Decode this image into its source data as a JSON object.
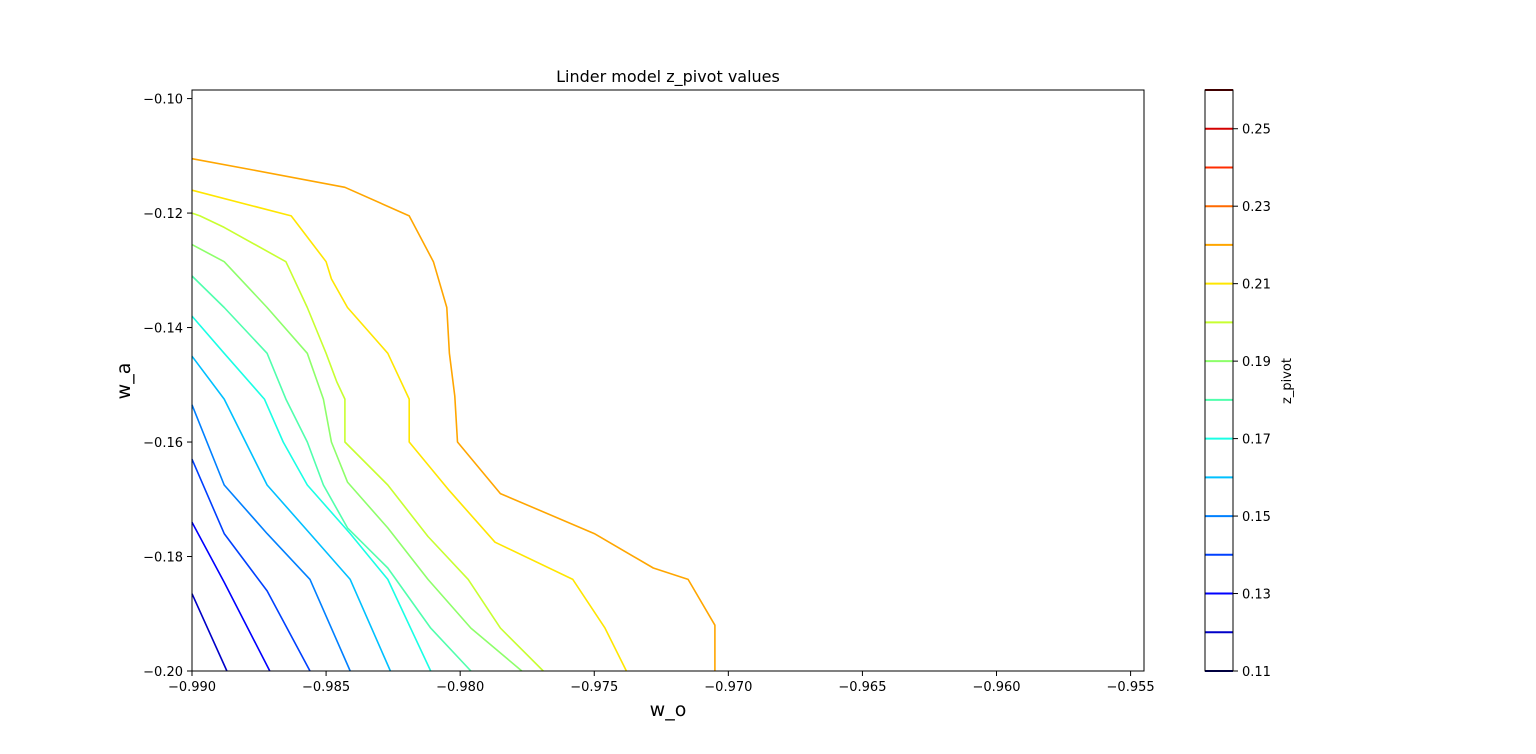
{
  "chart_data": {
    "type": "contour",
    "title": "Linder model z_pivot values",
    "xlabel": "w_o",
    "ylabel": "w_a",
    "xlim": [
      -0.99,
      -0.9545
    ],
    "ylim": [
      -0.2,
      -0.0985
    ],
    "xticks": [
      -0.99,
      -0.985,
      -0.98,
      -0.975,
      -0.97,
      -0.965,
      -0.96,
      -0.955
    ],
    "xtick_labels": [
      "−0.990",
      "−0.985",
      "−0.980",
      "−0.975",
      "−0.970",
      "−0.965",
      "−0.960",
      "−0.955"
    ],
    "yticks": [
      -0.2,
      -0.18,
      -0.16,
      -0.14,
      -0.12,
      -0.1
    ],
    "ytick_labels": [
      "−0.20",
      "−0.18",
      "−0.16",
      "−0.14",
      "−0.12",
      "−0.10"
    ],
    "grid": false,
    "colorbar": {
      "label": "z_pivot",
      "range": [
        0.11,
        0.26
      ],
      "levels": [
        0.11,
        0.12,
        0.13,
        0.14,
        0.15,
        0.16,
        0.17,
        0.18,
        0.19,
        0.2,
        0.21,
        0.22,
        0.23,
        0.24,
        0.25,
        0.26
      ],
      "level_colors": [
        "#00007f",
        "#0000c8",
        "#0000ff",
        "#0040ff",
        "#0080ff",
        "#00c0ff",
        "#1affe5",
        "#50ffad",
        "#8dff6a",
        "#c8ff30",
        "#ffe600",
        "#ffa600",
        "#ff6a00",
        "#ff2d00",
        "#d40000",
        "#7f0000"
      ],
      "tick_values": [
        0.11,
        0.13,
        0.15,
        0.17,
        0.19,
        0.21,
        0.23,
        0.25
      ],
      "tick_labels": [
        "0.11",
        "0.13",
        "0.15",
        "0.17",
        "0.19",
        "0.21",
        "0.23",
        "0.25"
      ]
    },
    "contours": [
      {
        "level": 0.12,
        "color": "#0000c8",
        "points": [
          [
            -0.99,
            -0.1865
          ],
          [
            -0.9887,
            -0.2
          ]
        ]
      },
      {
        "level": 0.13,
        "color": "#0000ff",
        "points": [
          [
            -0.99,
            -0.174
          ],
          [
            -0.9888,
            -0.1845
          ],
          [
            -0.9871,
            -0.2
          ]
        ]
      },
      {
        "level": 0.14,
        "color": "#0040ff",
        "points": [
          [
            -0.99,
            -0.163
          ],
          [
            -0.9888,
            -0.176
          ],
          [
            -0.9872,
            -0.186
          ],
          [
            -0.9856,
            -0.2
          ]
        ]
      },
      {
        "level": 0.15,
        "color": "#0080ff",
        "points": [
          [
            -0.99,
            -0.1535
          ],
          [
            -0.9888,
            -0.1675
          ],
          [
            -0.9872,
            -0.176
          ],
          [
            -0.9856,
            -0.184
          ],
          [
            -0.9841,
            -0.2
          ]
        ]
      },
      {
        "level": 0.16,
        "color": "#00c0ff",
        "points": [
          [
            -0.99,
            -0.145
          ],
          [
            -0.9888,
            -0.1525
          ],
          [
            -0.988,
            -0.16
          ],
          [
            -0.9872,
            -0.1675
          ],
          [
            -0.9856,
            -0.176
          ],
          [
            -0.9841,
            -0.184
          ],
          [
            -0.9826,
            -0.2
          ]
        ]
      },
      {
        "level": 0.17,
        "color": "#1affe5",
        "points": [
          [
            -0.99,
            -0.138
          ],
          [
            -0.9888,
            -0.1445
          ],
          [
            -0.9873,
            -0.1525
          ],
          [
            -0.9866,
            -0.16
          ],
          [
            -0.9857,
            -0.1675
          ],
          [
            -0.9841,
            -0.176
          ],
          [
            -0.9827,
            -0.184
          ],
          [
            -0.9811,
            -0.2
          ]
        ]
      },
      {
        "level": 0.18,
        "color": "#50ffad",
        "points": [
          [
            -0.99,
            -0.131
          ],
          [
            -0.9888,
            -0.1365
          ],
          [
            -0.9872,
            -0.1445
          ],
          [
            -0.9865,
            -0.1525
          ],
          [
            -0.9857,
            -0.16
          ],
          [
            -0.9851,
            -0.1675
          ],
          [
            -0.9842,
            -0.175
          ],
          [
            -0.9827,
            -0.182
          ],
          [
            -0.9811,
            -0.1925
          ],
          [
            -0.9796,
            -0.2
          ]
        ]
      },
      {
        "level": 0.19,
        "color": "#8dff6a",
        "points": [
          [
            -0.99,
            -0.1255
          ],
          [
            -0.9888,
            -0.1285
          ],
          [
            -0.9872,
            -0.1365
          ],
          [
            -0.9857,
            -0.1445
          ],
          [
            -0.9851,
            -0.1525
          ],
          [
            -0.9848,
            -0.16
          ],
          [
            -0.9842,
            -0.167
          ],
          [
            -0.9827,
            -0.175
          ],
          [
            -0.9812,
            -0.184
          ],
          [
            -0.9796,
            -0.1925
          ],
          [
            -0.9777,
            -0.2
          ]
        ]
      },
      {
        "level": 0.2,
        "color": "#c8ff30",
        "points": [
          [
            -0.99,
            -0.12
          ],
          [
            -0.9897,
            -0.1205
          ],
          [
            -0.9888,
            -0.1225
          ],
          [
            -0.9865,
            -0.1285
          ],
          [
            -0.9857,
            -0.1365
          ],
          [
            -0.985,
            -0.1445
          ],
          [
            -0.9846,
            -0.1495
          ],
          [
            -0.9843,
            -0.1525
          ],
          [
            -0.9843,
            -0.16
          ],
          [
            -0.9827,
            -0.1675
          ],
          [
            -0.9812,
            -0.1765
          ],
          [
            -0.9797,
            -0.184
          ],
          [
            -0.9785,
            -0.1925
          ],
          [
            -0.9769,
            -0.2
          ]
        ]
      },
      {
        "level": 0.21,
        "color": "#ffe600",
        "points": [
          [
            -0.99,
            -0.116
          ],
          [
            -0.9863,
            -0.1205
          ],
          [
            -0.985,
            -0.1285
          ],
          [
            -0.9848,
            -0.1315
          ],
          [
            -0.9842,
            -0.1365
          ],
          [
            -0.9827,
            -0.1445
          ],
          [
            -0.9819,
            -0.1525
          ],
          [
            -0.9819,
            -0.16
          ],
          [
            -0.9804,
            -0.1685
          ],
          [
            -0.9787,
            -0.1775
          ],
          [
            -0.9758,
            -0.184
          ],
          [
            -0.9746,
            -0.1925
          ],
          [
            -0.9738,
            -0.2
          ]
        ]
      },
      {
        "level": 0.22,
        "color": "#ffa600",
        "points": [
          [
            -0.99,
            -0.1105
          ],
          [
            -0.9877,
            -0.1125
          ],
          [
            -0.9843,
            -0.1155
          ],
          [
            -0.9819,
            -0.1205
          ],
          [
            -0.981,
            -0.1285
          ],
          [
            -0.9805,
            -0.1365
          ],
          [
            -0.9804,
            -0.1445
          ],
          [
            -0.9802,
            -0.152
          ],
          [
            -0.9801,
            -0.16
          ],
          [
            -0.9785,
            -0.169
          ],
          [
            -0.975,
            -0.176
          ],
          [
            -0.9728,
            -0.182
          ],
          [
            -0.9715,
            -0.184
          ],
          [
            -0.9705,
            -0.192
          ],
          [
            -0.9705,
            -0.2
          ]
        ]
      }
    ]
  }
}
